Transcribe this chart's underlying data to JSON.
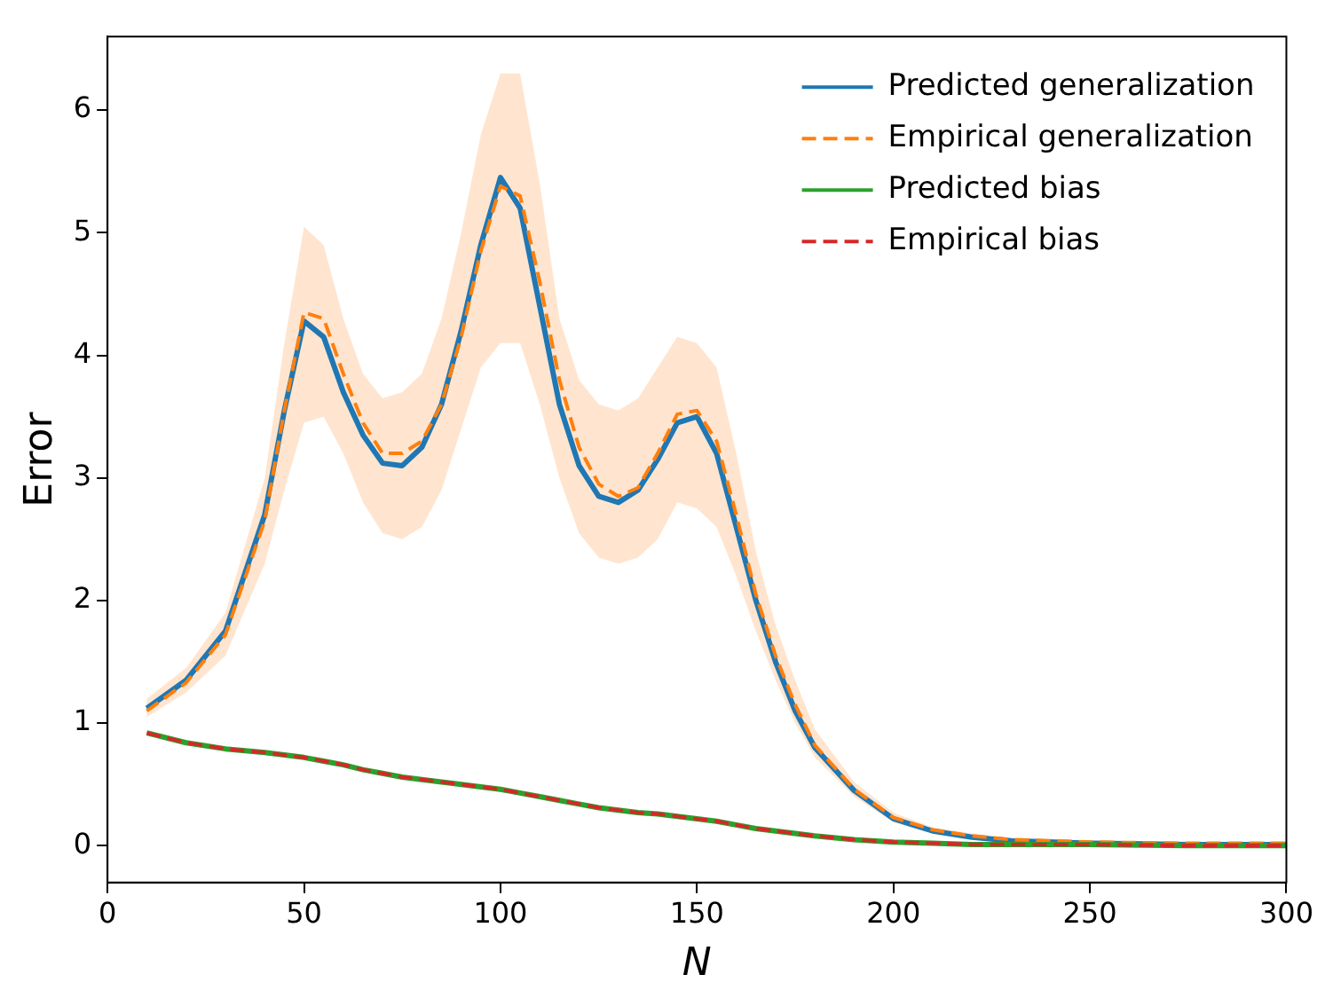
{
  "chart_data": {
    "type": "line",
    "xlabel": "N",
    "ylabel": "Error",
    "xlim": [
      0,
      300
    ],
    "ylim": [
      -0.3,
      6.6
    ],
    "xticks": [
      0,
      50,
      100,
      150,
      200,
      250,
      300
    ],
    "yticks": [
      0,
      1,
      2,
      3,
      4,
      5,
      6
    ],
    "grid": false,
    "legend": "top right",
    "marker": "none",
    "x": [
      10,
      20,
      30,
      40,
      45,
      50,
      55,
      60,
      65,
      70,
      75,
      80,
      85,
      90,
      95,
      100,
      105,
      110,
      115,
      120,
      125,
      130,
      135,
      140,
      145,
      150,
      155,
      160,
      165,
      170,
      175,
      180,
      190,
      200,
      210,
      220,
      230,
      250,
      275,
      300
    ],
    "series": [
      {
        "name": "Predicted generalization",
        "color": "#1f77b4",
        "line_style": "solid",
        "values": [
          1.12,
          1.35,
          1.75,
          2.7,
          3.55,
          4.28,
          4.15,
          3.7,
          3.35,
          3.12,
          3.1,
          3.25,
          3.6,
          4.2,
          4.9,
          5.45,
          5.2,
          4.4,
          3.6,
          3.1,
          2.85,
          2.8,
          2.9,
          3.15,
          3.45,
          3.5,
          3.2,
          2.6,
          2.0,
          1.5,
          1.1,
          0.8,
          0.45,
          0.22,
          0.12,
          0.07,
          0.04,
          0.02,
          0.01,
          0.01
        ]
      },
      {
        "name": "Empirical generalization",
        "color": "#ff7f0e",
        "line_style": "dashed",
        "values": [
          1.1,
          1.33,
          1.72,
          2.65,
          3.55,
          4.35,
          4.3,
          3.85,
          3.45,
          3.2,
          3.2,
          3.3,
          3.6,
          4.15,
          4.85,
          5.38,
          5.3,
          4.6,
          3.8,
          3.25,
          2.95,
          2.85,
          2.92,
          3.2,
          3.52,
          3.55,
          3.3,
          2.7,
          2.05,
          1.55,
          1.15,
          0.82,
          0.46,
          0.23,
          0.13,
          0.08,
          0.05,
          0.03,
          0.02,
          0.02
        ],
        "lower": [
          1.05,
          1.25,
          1.55,
          2.3,
          2.9,
          3.45,
          3.5,
          3.2,
          2.8,
          2.55,
          2.5,
          2.6,
          2.9,
          3.4,
          3.9,
          4.1,
          4.1,
          3.6,
          3.0,
          2.55,
          2.35,
          2.3,
          2.35,
          2.5,
          2.8,
          2.75,
          2.6,
          2.2,
          1.75,
          1.35,
          1.0,
          0.72,
          0.4,
          0.19,
          0.1,
          0.06,
          0.04,
          0.02,
          0.01,
          0.01
        ],
        "upper": [
          1.2,
          1.45,
          1.9,
          3.0,
          4.1,
          5.05,
          4.9,
          4.3,
          3.85,
          3.65,
          3.7,
          3.85,
          4.3,
          5.0,
          5.8,
          6.3,
          6.3,
          5.4,
          4.3,
          3.8,
          3.6,
          3.55,
          3.65,
          3.9,
          4.15,
          4.1,
          3.9,
          3.2,
          2.4,
          1.8,
          1.35,
          0.95,
          0.52,
          0.27,
          0.15,
          0.1,
          0.06,
          0.04,
          0.03,
          0.03
        ]
      },
      {
        "name": "Predicted bias",
        "color": "#2ca02c",
        "line_style": "solid",
        "values": [
          0.92,
          0.84,
          0.79,
          0.76,
          0.74,
          0.72,
          0.69,
          0.66,
          0.62,
          0.59,
          0.56,
          0.54,
          0.52,
          0.5,
          0.48,
          0.46,
          0.43,
          0.4,
          0.37,
          0.34,
          0.31,
          0.29,
          0.27,
          0.26,
          0.24,
          0.22,
          0.2,
          0.17,
          0.14,
          0.12,
          0.1,
          0.08,
          0.05,
          0.03,
          0.02,
          0.01,
          0.01,
          0.01,
          0,
          0
        ]
      },
      {
        "name": "Empirical bias",
        "color": "#d62728",
        "line_style": "dashed",
        "values": [
          0.92,
          0.84,
          0.79,
          0.76,
          0.74,
          0.72,
          0.69,
          0.66,
          0.62,
          0.59,
          0.56,
          0.54,
          0.52,
          0.5,
          0.48,
          0.46,
          0.43,
          0.4,
          0.37,
          0.34,
          0.31,
          0.29,
          0.27,
          0.26,
          0.24,
          0.22,
          0.2,
          0.17,
          0.14,
          0.12,
          0.1,
          0.08,
          0.05,
          0.03,
          0.02,
          0.01,
          0.01,
          0.01,
          0,
          0
        ]
      }
    ]
  }
}
